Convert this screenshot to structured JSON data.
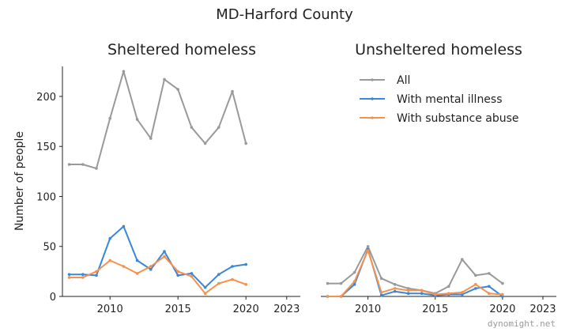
{
  "title": "MD-Harford County",
  "watermark": "dynomight.net",
  "colors": {
    "All": "#999999",
    "With mental illness": "#3a86d9",
    "With substance abuse": "#f5914e"
  },
  "chart_data": [
    {
      "type": "line",
      "title": "Sheltered homeless",
      "ylabel": "Number of people",
      "xlabel": "",
      "xlim": [
        2006.5,
        2024
      ],
      "ylim": [
        0,
        230
      ],
      "xticks": [
        2010,
        2015,
        2020,
        2023
      ],
      "yticks": [
        0,
        50,
        100,
        150,
        200
      ],
      "grid": false,
      "series": [
        {
          "name": "All",
          "x": [
            2007,
            2008,
            2009,
            2010,
            2011,
            2012,
            2013,
            2014,
            2015,
            2016,
            2017,
            2018,
            2019,
            2020
          ],
          "values": [
            132,
            132,
            128,
            178,
            225,
            177,
            158,
            217,
            207,
            169,
            153,
            169,
            205,
            153
          ]
        },
        {
          "name": "With mental illness",
          "x": [
            2007,
            2008,
            2009,
            2010,
            2011,
            2012,
            2013,
            2014,
            2015,
            2016,
            2017,
            2018,
            2019,
            2020
          ],
          "values": [
            22,
            22,
            21,
            58,
            70,
            36,
            27,
            45,
            21,
            23,
            9,
            22,
            30,
            32
          ]
        },
        {
          "name": "With substance abuse",
          "x": [
            2007,
            2008,
            2009,
            2010,
            2011,
            2012,
            2013,
            2014,
            2015,
            2016,
            2017,
            2018,
            2019,
            2020
          ],
          "values": [
            19,
            19,
            25,
            36,
            30,
            23,
            30,
            40,
            25,
            20,
            3,
            13,
            17,
            12
          ]
        }
      ]
    },
    {
      "type": "line",
      "title": "Unsheltered homeless",
      "xlabel": "",
      "xlim": [
        2006.5,
        2024
      ],
      "ylim": [
        0,
        230
      ],
      "xticks": [
        2010,
        2015,
        2020,
        2023
      ],
      "grid": false,
      "legend_position": "top-right",
      "series": [
        {
          "name": "All",
          "x": [
            2007,
            2008,
            2009,
            2010,
            2011,
            2012,
            2013,
            2014,
            2015,
            2016,
            2017,
            2018,
            2019,
            2020
          ],
          "values": [
            13,
            13,
            24,
            50,
            18,
            12,
            8,
            6,
            3,
            10,
            37,
            21,
            23,
            13
          ]
        },
        {
          "name": "With mental illness",
          "x": [
            2007,
            2008,
            2009,
            2010,
            2011,
            2012,
            2013,
            2014,
            2015,
            2016,
            2017,
            2018,
            2019,
            2020
          ],
          "values": [
            0,
            0,
            12,
            47,
            1,
            5,
            3,
            3,
            1,
            2,
            2,
            8,
            10,
            0
          ]
        },
        {
          "name": "With substance abuse",
          "x": [
            2007,
            2008,
            2009,
            2010,
            2011,
            2012,
            2013,
            2014,
            2015,
            2016,
            2017,
            2018,
            2019,
            2020
          ],
          "values": [
            0,
            0,
            15,
            46,
            4,
            8,
            6,
            6,
            2,
            3,
            4,
            12,
            3,
            2
          ]
        }
      ]
    }
  ]
}
